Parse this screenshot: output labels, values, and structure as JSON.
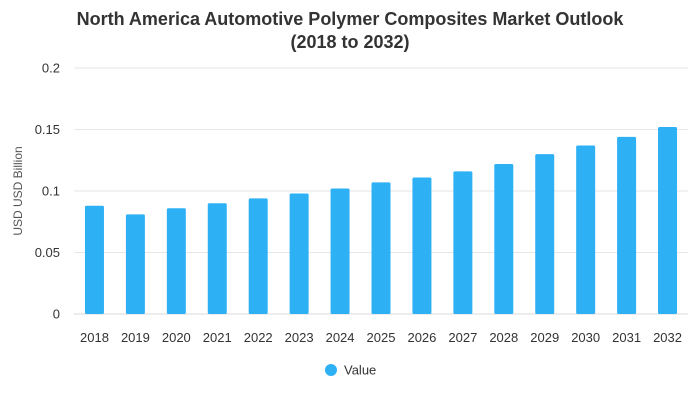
{
  "chart_data": {
    "type": "bar",
    "title_line1": "North America Automotive Polymer Composites Market Outlook",
    "title_line2": "(2018 to 2032)",
    "xlabel": "",
    "ylabel": "USD USD Billion",
    "ylim": [
      0,
      0.2
    ],
    "yticks": [
      "0",
      "0.05",
      "0.1",
      "0.15",
      "0.2"
    ],
    "grid": true,
    "legend_position": "bottom-center",
    "bar_color": "#2eb0f5",
    "categories": [
      "2018",
      "2019",
      "2020",
      "2021",
      "2022",
      "2023",
      "2024",
      "2025",
      "2026",
      "2027",
      "2028",
      "2029",
      "2030",
      "2031",
      "2032"
    ],
    "series": [
      {
        "name": "Value",
        "values": [
          0.088,
          0.081,
          0.086,
          0.09,
          0.094,
          0.098,
          0.102,
          0.107,
          0.111,
          0.116,
          0.122,
          0.13,
          0.137,
          0.144,
          0.152
        ]
      }
    ]
  }
}
